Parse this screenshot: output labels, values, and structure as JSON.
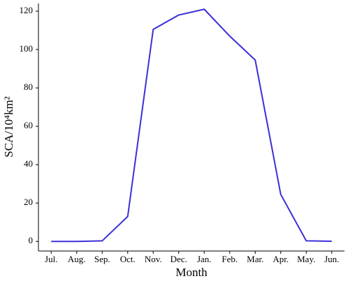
{
  "chart_data": {
    "type": "line",
    "x_label": "Month",
    "y_label": "SCA/10⁴km²",
    "categories": [
      "Jul.",
      "Aug.",
      "Sep.",
      "Oct.",
      "Nov.",
      "Dec.",
      "Jan.",
      "Feb.",
      "Mar.",
      "Apr.",
      "May.",
      "Jun."
    ],
    "series": [
      {
        "name": "SCA",
        "color": "#3b2fd8",
        "values": [
          0,
          0,
          0.3,
          13,
          110.5,
          118,
          121,
          107,
          94.5,
          24.5,
          0.3,
          0.1
        ]
      }
    ],
    "ylim": [
      -5,
      124
    ],
    "yticks": [
      0,
      20,
      40,
      60,
      80,
      100,
      120
    ],
    "grid": false
  }
}
